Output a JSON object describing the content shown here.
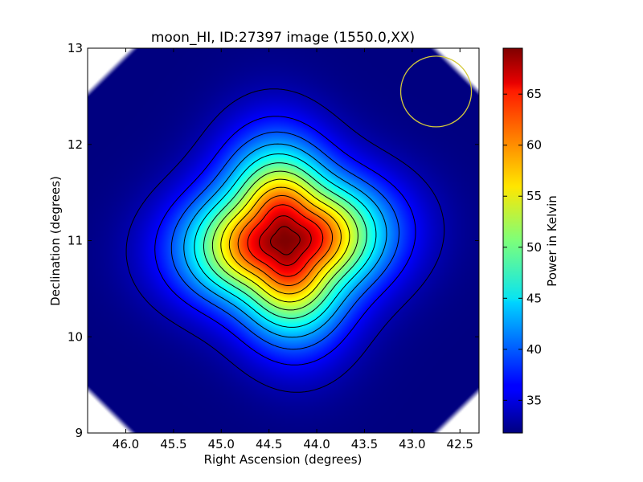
{
  "chart_data": {
    "type": "heatmap",
    "title": "moon_HI, ID:27397 image (1550.0,XX)",
    "xlabel": "Right Ascension (degrees)",
    "ylabel": "Declination (degrees)",
    "xlim": [
      46.4,
      42.3
    ],
    "ylim": [
      9,
      13
    ],
    "x_ticks": [
      "46.0",
      "45.5",
      "45.0",
      "44.5",
      "44.0",
      "43.5",
      "43.0",
      "42.5"
    ],
    "x_tick_values": [
      46.0,
      45.5,
      45.0,
      44.5,
      44.0,
      43.5,
      43.0,
      42.5
    ],
    "y_ticks": [
      "9",
      "10",
      "11",
      "12",
      "13"
    ],
    "y_tick_values": [
      9,
      10,
      11,
      12,
      13
    ],
    "colorbar": {
      "label": "Power in Kelvin",
      "range": [
        31.8,
        69.5
      ],
      "ticks": [
        "35",
        "40",
        "45",
        "50",
        "55",
        "60",
        "65"
      ],
      "tick_values": [
        35,
        40,
        45,
        50,
        55,
        60,
        65
      ],
      "colormap": "jet"
    },
    "peak": {
      "ra": 44.33,
      "dec": 11.0,
      "value": 69.5
    },
    "background_value": 31.8,
    "contours": {
      "color": "#000000",
      "levels": [
        33.5,
        36.5,
        39.5,
        42.5,
        45.5,
        48.5,
        51.5,
        54.5,
        57.5,
        60.5,
        63.5,
        66.5,
        68.5
      ]
    },
    "beam": {
      "ra": 42.75,
      "dec": 12.55,
      "color": "#d4c93a"
    }
  }
}
